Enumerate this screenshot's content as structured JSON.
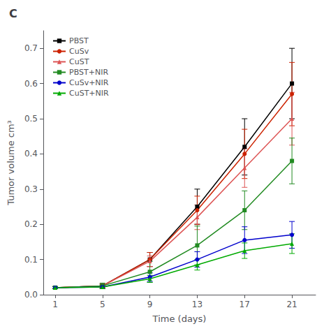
{
  "chart_data": {
    "type": "line",
    "title": "C",
    "xlabel": "Time (days)",
    "ylabel": "Tumor volume cm³",
    "x": [
      1,
      5,
      9,
      13,
      17,
      21
    ],
    "series": [
      {
        "name": "PBST",
        "color": "#000000",
        "marker": "square",
        "values": [
          0.02,
          0.025,
          0.1,
          0.25,
          0.42,
          0.6
        ],
        "yerr": [
          0.003,
          0.005,
          0.02,
          0.05,
          0.08,
          0.1
        ]
      },
      {
        "name": "CuSv",
        "color": "#cc2200",
        "marker": "circle",
        "values": [
          0.02,
          0.025,
          0.1,
          0.24,
          0.4,
          0.57
        ],
        "yerr": [
          0.003,
          0.005,
          0.02,
          0.04,
          0.07,
          0.09
        ]
      },
      {
        "name": "CuST",
        "color": "#dd5555",
        "marker": "triangle",
        "values": [
          0.02,
          0.025,
          0.095,
          0.22,
          0.36,
          0.5
        ],
        "yerr": [
          0.003,
          0.005,
          0.015,
          0.035,
          0.055,
          0.075
        ]
      },
      {
        "name": "PBST+NIR",
        "color": "#228B22",
        "marker": "square",
        "values": [
          0.02,
          0.025,
          0.065,
          0.14,
          0.24,
          0.38
        ],
        "yerr": [
          0.003,
          0.008,
          0.03,
          0.055,
          0.055,
          0.065
        ]
      },
      {
        "name": "CuSv+NIR",
        "color": "#0000cc",
        "marker": "circle",
        "values": [
          0.02,
          0.022,
          0.05,
          0.1,
          0.155,
          0.17
        ],
        "yerr": [
          0.003,
          0.005,
          0.012,
          0.022,
          0.038,
          0.038
        ]
      },
      {
        "name": "CuST+NIR",
        "color": "#00aa00",
        "marker": "triangle",
        "values": [
          0.02,
          0.022,
          0.045,
          0.085,
          0.125,
          0.145
        ],
        "yerr": [
          0.003,
          0.005,
          0.01,
          0.015,
          0.022,
          0.028
        ]
      }
    ],
    "xlim": [
      0,
      23
    ],
    "ylim": [
      0,
      0.75
    ],
    "xticks": [
      1,
      5,
      9,
      13,
      17,
      21
    ],
    "yticks": [
      {
        "value": 0,
        "label": "0.0"
      },
      0.1,
      0.2,
      0.3,
      0.4,
      0.5,
      0.6,
      0.7
    ],
    "grid": false,
    "legend": "upper left"
  }
}
